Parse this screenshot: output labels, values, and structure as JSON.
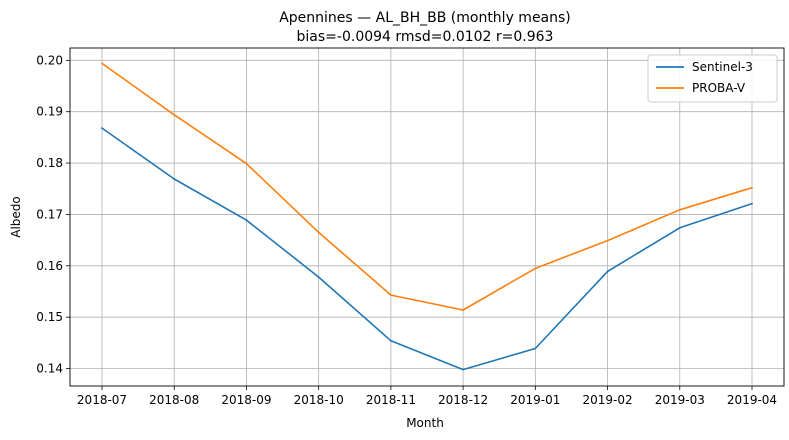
{
  "chart_data": {
    "type": "line",
    "title_line1": "Apennines — AL_BH_BB (monthly means)",
    "title_line2": "bias=-0.0094  rmsd=0.0102  r=0.963",
    "xlabel": "Month",
    "ylabel": "Albedo",
    "categories": [
      "2018-07",
      "2018-08",
      "2018-09",
      "2018-10",
      "2018-11",
      "2018-12",
      "2019-01",
      "2019-02",
      "2019-03",
      "2019-04"
    ],
    "yticks": [
      0.14,
      0.15,
      0.16,
      0.17,
      0.18,
      0.19,
      0.2
    ],
    "ytick_labels": [
      "0.14",
      "0.15",
      "0.16",
      "0.17",
      "0.18",
      "0.19",
      "0.20"
    ],
    "ylim": [
      0.1366,
      0.2024
    ],
    "grid": true,
    "legend_position": "top-right",
    "series": [
      {
        "name": "Sentinel-3",
        "color": "#1f77b4",
        "values": [
          0.1868,
          0.1769,
          0.1689,
          0.1578,
          0.1454,
          0.1398,
          0.1439,
          0.1589,
          0.1674,
          0.1721
        ]
      },
      {
        "name": "PROBA-V",
        "color": "#ff7f0e",
        "values": [
          0.1994,
          0.1894,
          0.1799,
          0.1665,
          0.1543,
          0.1514,
          0.1595,
          0.1649,
          0.1709,
          0.1752
        ]
      }
    ]
  }
}
